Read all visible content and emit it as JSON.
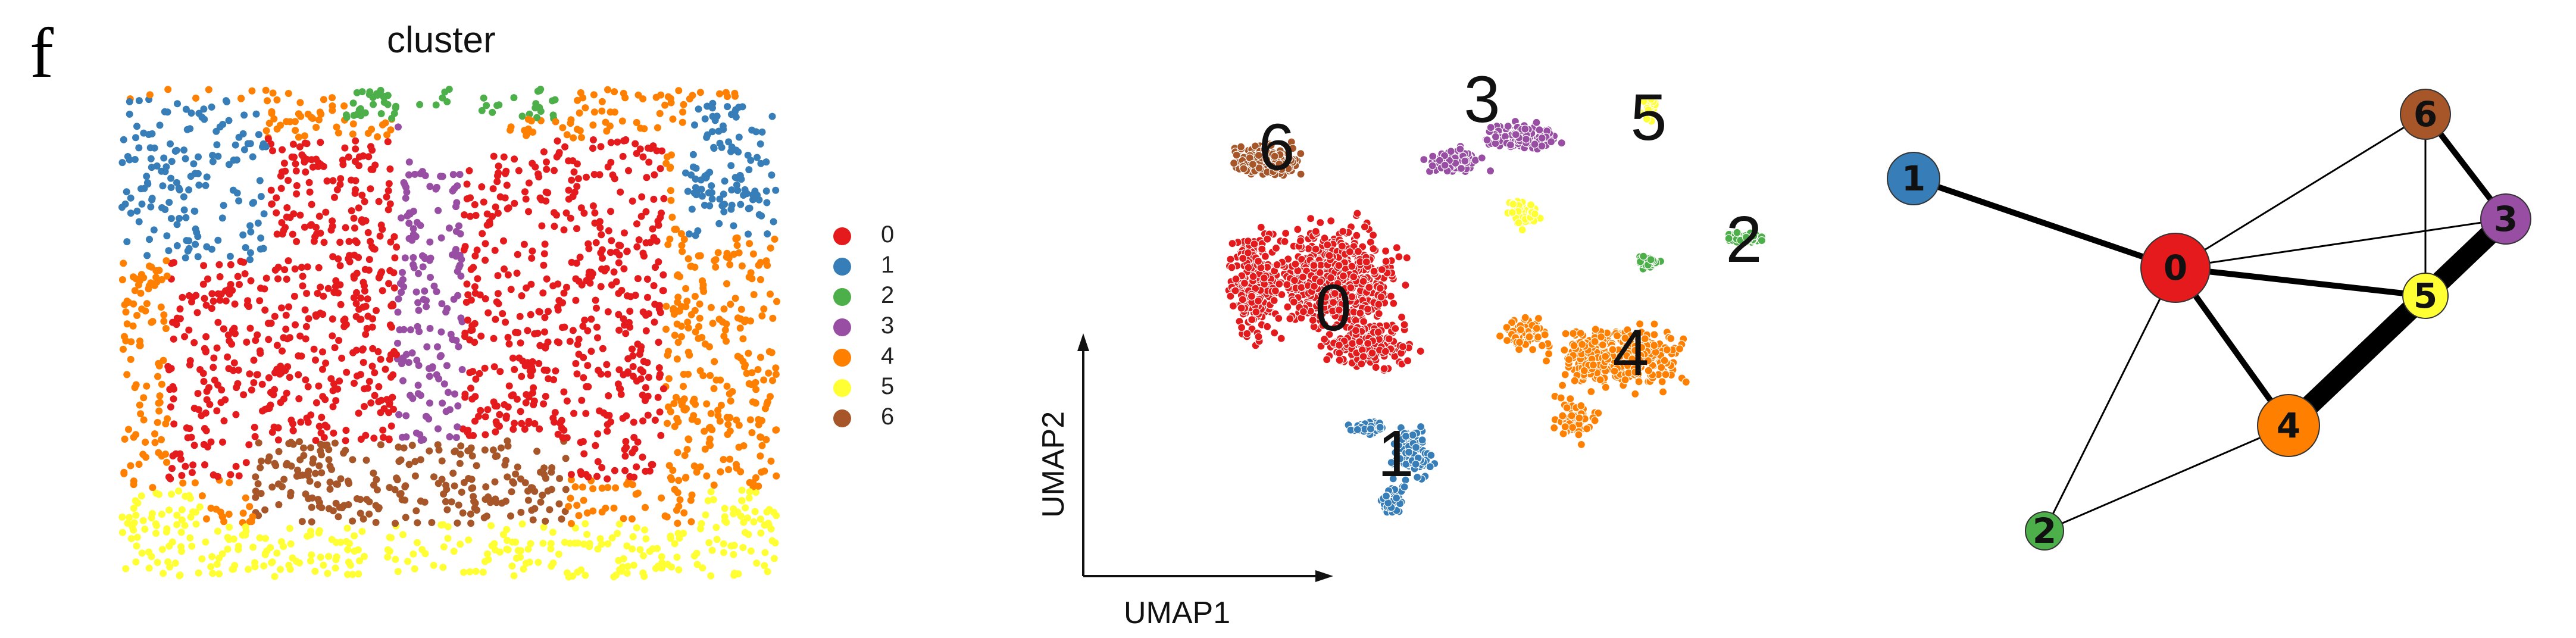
{
  "panel_letter": "f",
  "spatial": {
    "title": "cluster"
  },
  "legend": [
    {
      "label": "0",
      "color": "#e41a1c"
    },
    {
      "label": "1",
      "color": "#377eb8"
    },
    {
      "label": "2",
      "color": "#4daf4a"
    },
    {
      "label": "3",
      "color": "#984ea3"
    },
    {
      "label": "4",
      "color": "#ff7f00"
    },
    {
      "label": "5",
      "color": "#ffff33"
    },
    {
      "label": "6",
      "color": "#a65628"
    }
  ],
  "umap": {
    "xlabel": "UMAP1",
    "ylabel": "UMAP2",
    "cluster_labels": [
      "0",
      "1",
      "2",
      "3",
      "4",
      "5",
      "6"
    ]
  },
  "graph": {
    "nodes": [
      {
        "id": "0",
        "color": "#e41a1c"
      },
      {
        "id": "1",
        "color": "#377eb8"
      },
      {
        "id": "2",
        "color": "#4daf4a"
      },
      {
        "id": "3",
        "color": "#984ea3"
      },
      {
        "id": "4",
        "color": "#ff7f00"
      },
      {
        "id": "5",
        "color": "#ffff33"
      },
      {
        "id": "6",
        "color": "#a65628"
      }
    ],
    "edges": [
      {
        "source": "1",
        "target": "0",
        "weight": "strong"
      },
      {
        "source": "0",
        "target": "6",
        "weight": "thin"
      },
      {
        "source": "0",
        "target": "3",
        "weight": "thin"
      },
      {
        "source": "0",
        "target": "5",
        "weight": "strong"
      },
      {
        "source": "0",
        "target": "4",
        "weight": "strong"
      },
      {
        "source": "0",
        "target": "2",
        "weight": "thin"
      },
      {
        "source": "6",
        "target": "3",
        "weight": "strong"
      },
      {
        "source": "6",
        "target": "5",
        "weight": "thin"
      },
      {
        "source": "3",
        "target": "5",
        "weight": "heavy"
      },
      {
        "source": "3",
        "target": "4",
        "weight": "heavy"
      },
      {
        "source": "2",
        "target": "4",
        "weight": "thin"
      }
    ]
  }
}
